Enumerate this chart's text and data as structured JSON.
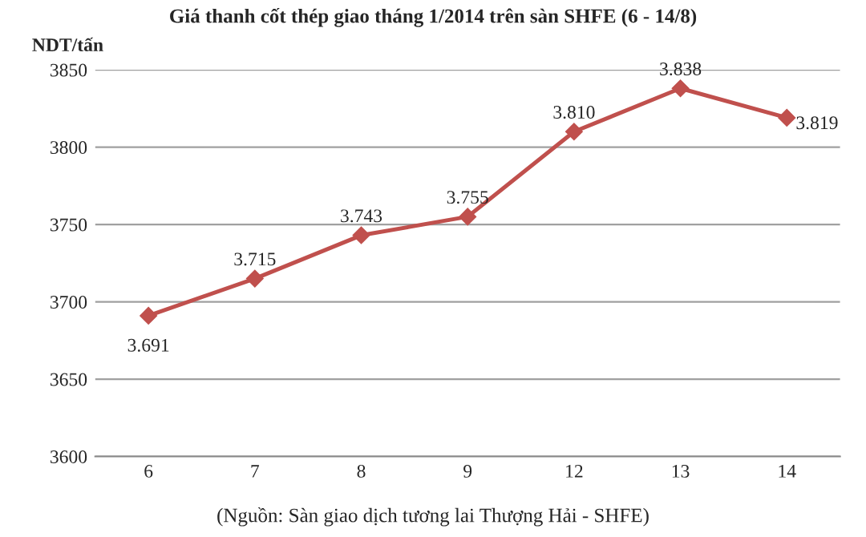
{
  "chart_data": {
    "type": "line",
    "title": "Giá thanh cốt thép giao tháng 1/2014 trên sàn SHFE (6 - 14/8)",
    "ylabel": "NDT/tấn",
    "categories": [
      "6",
      "7",
      "8",
      "9",
      "12",
      "13",
      "14"
    ],
    "series": [
      {
        "color": "#c0504d",
        "values": [
          3691,
          3715,
          3743,
          3755,
          3810,
          3838,
          3819
        ],
        "value_labels": [
          "3.691",
          "3.715",
          "3.743",
          "3.755",
          "3.810",
          "3.838",
          "3.819"
        ]
      }
    ],
    "ylim": [
      3600,
      3850
    ],
    "yticks": [
      3600,
      3650,
      3700,
      3750,
      3800,
      3850
    ],
    "grid": "y",
    "marker": "diamond",
    "line_style": "solid",
    "legend": false,
    "annotations": [
      "(Nguồn: Sàn giao dịch tương lai Thượng Hải - SHFE)"
    ]
  }
}
